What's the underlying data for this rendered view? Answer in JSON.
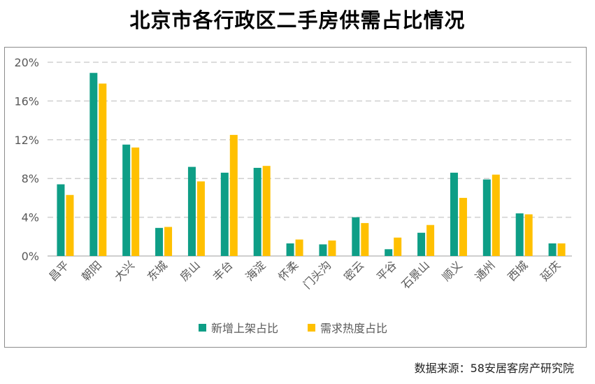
{
  "title": "北京市各行政区二手房供需占比情况",
  "source": "数据来源：58安居客房产研究院",
  "colors": {
    "series1": "#0e9e86",
    "series2": "#ffc000",
    "grid": "#d0d0d0",
    "axis": "#bfbfbf",
    "text": "#595959"
  },
  "chart_data": {
    "type": "bar",
    "title": "北京市各行政区二手房供需占比情况",
    "xlabel": "",
    "ylabel": "",
    "ylim": [
      0,
      20
    ],
    "yticks": [
      0,
      4,
      8,
      12,
      16,
      20
    ],
    "ytick_labels": [
      "0%",
      "4%",
      "8%",
      "12%",
      "16%",
      "20%"
    ],
    "grid": true,
    "legend_position": "bottom",
    "categories": [
      "昌平",
      "朝阳",
      "大兴",
      "东城",
      "房山",
      "丰台",
      "海淀",
      "怀柔",
      "门头沟",
      "密云",
      "平谷",
      "石景山",
      "顺义",
      "通州",
      "西城",
      "延庆"
    ],
    "series": [
      {
        "name": "新增上架占比",
        "values": [
          7.4,
          18.9,
          11.5,
          2.9,
          9.2,
          8.6,
          9.1,
          1.3,
          1.2,
          4.0,
          0.7,
          2.4,
          8.6,
          7.9,
          4.4,
          1.3
        ]
      },
      {
        "name": "需求热度占比",
        "values": [
          6.3,
          17.8,
          11.2,
          3.0,
          7.7,
          12.5,
          9.3,
          1.7,
          1.6,
          3.4,
          1.9,
          3.2,
          6.0,
          8.4,
          4.3,
          1.3
        ]
      }
    ]
  }
}
